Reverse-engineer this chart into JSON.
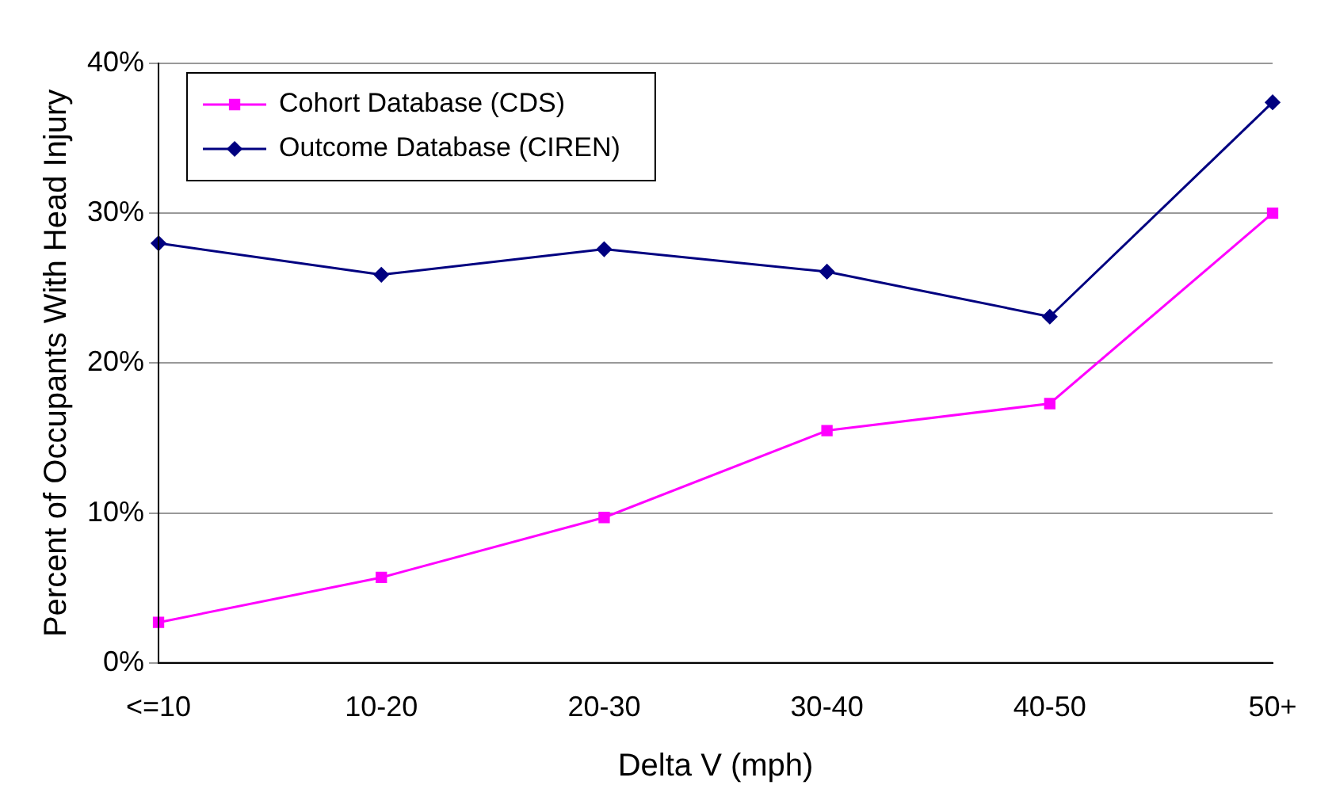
{
  "chart_data": {
    "type": "line",
    "xlabel": "Delta V (mph)",
    "ylabel": "Percent of Occupants With Head Injury",
    "categories": [
      "<=10",
      "10-20",
      "20-30",
      "30-40",
      "40-50",
      "50+"
    ],
    "series": [
      {
        "name": "Cohort Database (CDS)",
        "color": "#ff00ff",
        "marker": "square",
        "values": [
          2.7,
          5.7,
          9.7,
          15.5,
          17.3,
          30.0
        ]
      },
      {
        "name": "Outcome Database (CIREN)",
        "color": "#000080",
        "marker": "diamond",
        "values": [
          28.0,
          25.9,
          27.6,
          26.1,
          23.1,
          37.4
        ]
      }
    ],
    "ylim": [
      0,
      40
    ],
    "yticks": [
      {
        "value": 0,
        "label": "0%"
      },
      {
        "value": 10,
        "label": "10%"
      },
      {
        "value": 20,
        "label": "20%"
      },
      {
        "value": 30,
        "label": "30%"
      },
      {
        "value": 40,
        "label": "40%"
      }
    ],
    "grid": "y",
    "legend": "top left"
  }
}
